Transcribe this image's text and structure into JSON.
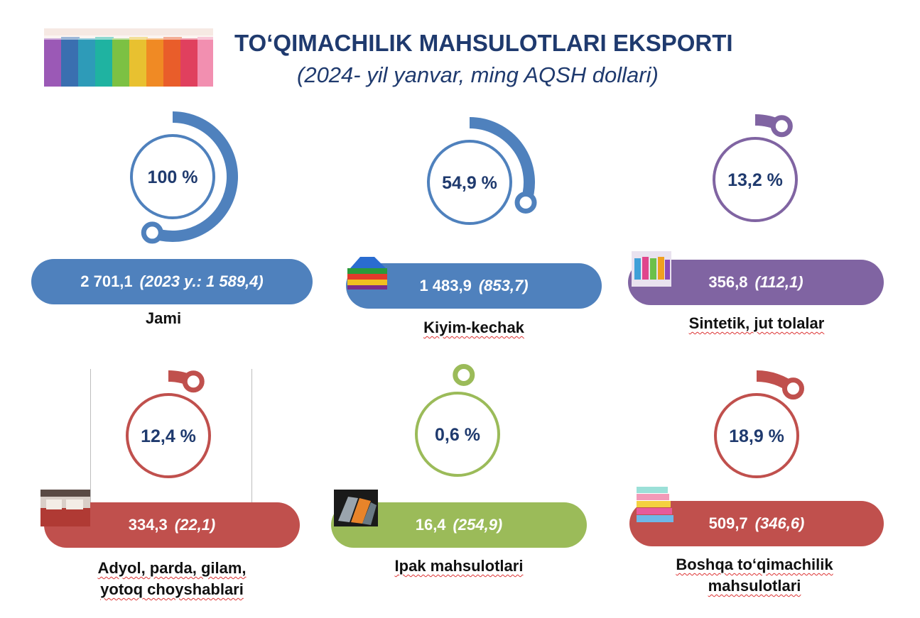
{
  "header": {
    "title": "TO‘QIMACHILIK MAHSULOTLARI EKSPORTI",
    "subtitle": "(2024- yil yanvar, ming AQSH dollari)"
  },
  "colors": {
    "blue": "#4f81bd",
    "purple": "#8064a2",
    "red": "#c0504d",
    "green": "#9bbb59",
    "title": "#1f3a6e"
  },
  "chart_data": {
    "type": "gauge",
    "items": [
      {
        "percent": 100,
        "percent_label": "100 %",
        "value": "2 701,1",
        "prev": "(2023 y.: 1 589,4)",
        "label_lines": [
          "Jami"
        ],
        "color": "#4f81bd"
      },
      {
        "percent": 54.9,
        "percent_label": "54,9 %",
        "value": "1 483,9",
        "prev": "(853,7)",
        "label_lines": [
          "Kiyim-kechak"
        ],
        "color": "#4f81bd"
      },
      {
        "percent": 13.2,
        "percent_label": "13,2 %",
        "value": "356,8",
        "prev": "(112,1)",
        "label_lines": [
          "Sintetik, jut tolalar"
        ],
        "color": "#8064a2"
      },
      {
        "percent": 12.4,
        "percent_label": "12,4 %",
        "value": "334,3",
        "prev": "(22,1)",
        "label_lines": [
          "Adyol, parda, gilam,",
          "yotoq choyshablari"
        ],
        "color": "#c0504d"
      },
      {
        "percent": 0.6,
        "percent_label": "0,6 %",
        "value": "16,4",
        "prev": "(254,9)",
        "label_lines": [
          "Ipak mahsulotlari"
        ],
        "color": "#9bbb59"
      },
      {
        "percent": 18.9,
        "percent_label": "18,9 %",
        "value": "509,7",
        "prev": "(346,6)",
        "label_lines": [
          "Boshqa to‘qimachilik",
          "mahsulotlari"
        ],
        "color": "#c0504d"
      }
    ]
  }
}
